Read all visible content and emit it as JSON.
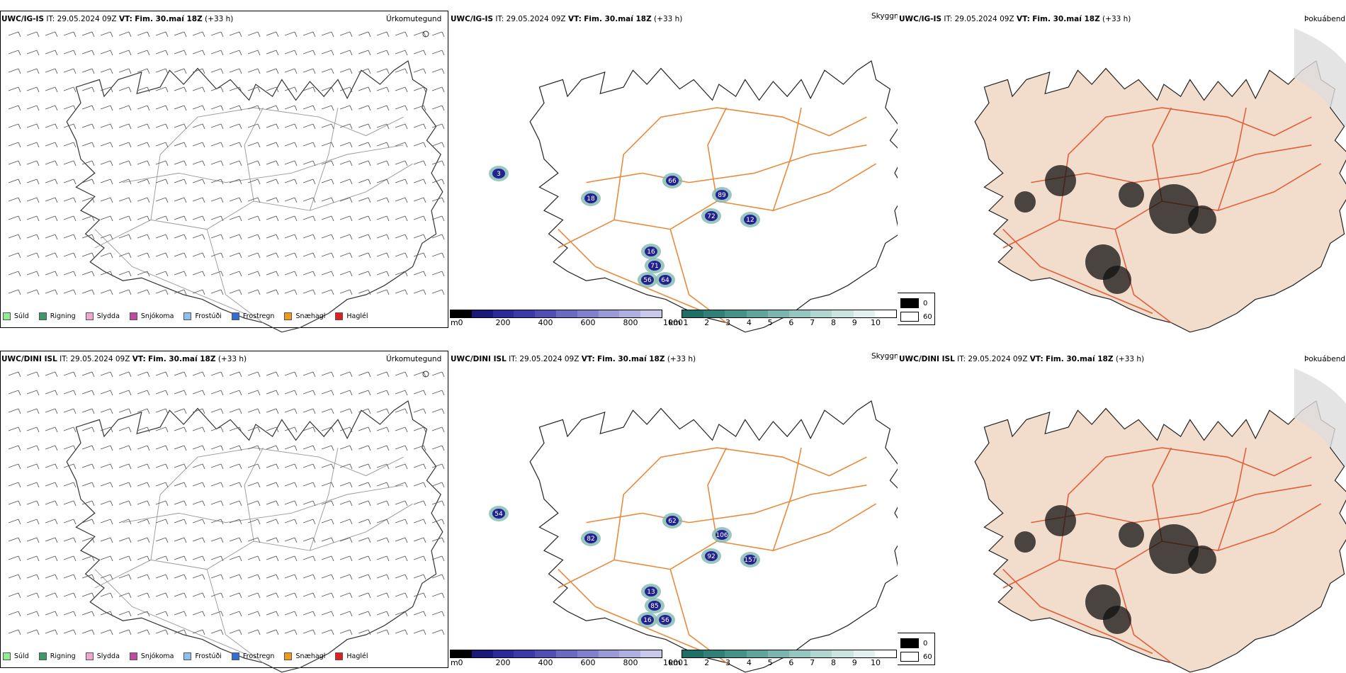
{
  "rows": [
    {
      "model": "UWC/IG-IS",
      "it_label": "IT:",
      "it_value": "29.05.2024 09Z",
      "vt_label": "VT:",
      "vt_value": "Fim. 30.maí 18Z",
      "lead": "(+33 h)",
      "precip_name": "Úrkomutegund",
      "cloud_name": "Skyggni",
      "fog_name": "Þokuábendi",
      "cloud_labels": [
        "18",
        "66",
        "89",
        "72",
        "12",
        "16",
        "71",
        "56",
        "64",
        "3"
      ]
    },
    {
      "model": "UWC/DINI ISL",
      "it_label": "IT:",
      "it_value": "29.05.2024 09Z",
      "vt_label": "VT:",
      "vt_value": "Fim. 30.maí 18Z",
      "lead": "(+33 h)",
      "precip_name": "Úrkomutegund",
      "cloud_name": "Skyggni",
      "fog_name": "Þokuábendi",
      "cloud_labels": [
        "82",
        "62",
        "106",
        "92",
        "157",
        "13",
        "85",
        "16",
        "56",
        "54"
      ]
    }
  ],
  "precip_legend": [
    {
      "label": "Súld",
      "color": "#90ee90"
    },
    {
      "label": "Rigning",
      "color": "#3c9a6a"
    },
    {
      "label": "Slydda",
      "color": "#f4a6d0"
    },
    {
      "label": "Snjókoma",
      "color": "#c04aa0"
    },
    {
      "label": "Frostúði",
      "color": "#8fbfef"
    },
    {
      "label": "Frostregn",
      "color": "#2f6fd0"
    },
    {
      "label": "Snæhagl",
      "color": "#f09a20"
    },
    {
      "label": "Haglél",
      "color": "#e02020"
    }
  ],
  "ceiling_scale": {
    "unit": "m",
    "ticks": [
      "0",
      "200",
      "400",
      "600",
      "800",
      "1000"
    ]
  },
  "visibility_scale": {
    "unit": "km",
    "ticks": [
      "1",
      "2",
      "3",
      "4",
      "5",
      "6",
      "7",
      "8",
      "9",
      "10"
    ]
  },
  "fog_scale": {
    "top": "0",
    "bottom": "60"
  },
  "colors": {
    "ceiling": [
      "#000000",
      "#1a1a7a",
      "#2a2a9a",
      "#3a3aa8",
      "#5050b4",
      "#6a6ac0",
      "#8080cc",
      "#9a9ad6",
      "#b0b0e0",
      "#c8c8ea"
    ],
    "visibility": [
      "#1f6f66",
      "#2f8078",
      "#44928a",
      "#5fa59d",
      "#7ab6af",
      "#95c6c0",
      "#b0d6d1",
      "#c9e4e1",
      "#e2f1ef",
      "#ffffff"
    ],
    "roads": "#e88a3a",
    "fog_land": "#f2dccb"
  }
}
